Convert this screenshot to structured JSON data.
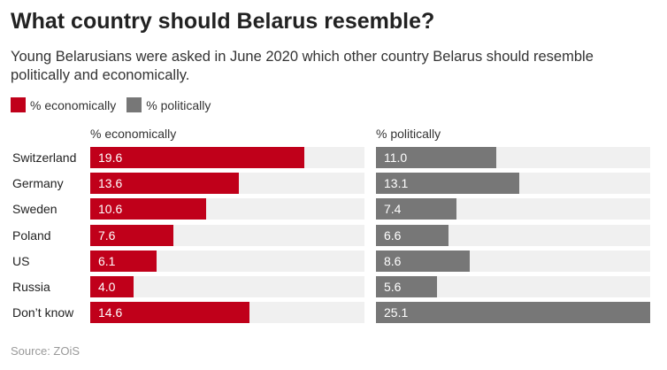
{
  "title": "What country should Belarus resemble?",
  "subtitle": "Young Belarusians were asked in June 2020 which other country Belarus should resemble politically and economically.",
  "source": "Source: ZOiS",
  "chart_data": {
    "type": "bar",
    "orientation": "horizontal",
    "categories": [
      "Switzerland",
      "Germany",
      "Sweden",
      "Poland",
      "US",
      "Russia",
      "Don’t know"
    ],
    "legend": [
      "% economically",
      "% politically"
    ],
    "legend_placement": "top-left",
    "colors": [
      "#c0001a",
      "#777777"
    ],
    "xlim": [
      0,
      25.1
    ],
    "grid": false,
    "series": [
      {
        "name": "% economically",
        "values": [
          19.6,
          13.6,
          10.6,
          7.6,
          6.1,
          4.0,
          14.6
        ]
      },
      {
        "name": "% politically",
        "values": [
          11.0,
          13.1,
          7.4,
          6.6,
          8.6,
          5.6,
          25.1
        ]
      }
    ]
  }
}
